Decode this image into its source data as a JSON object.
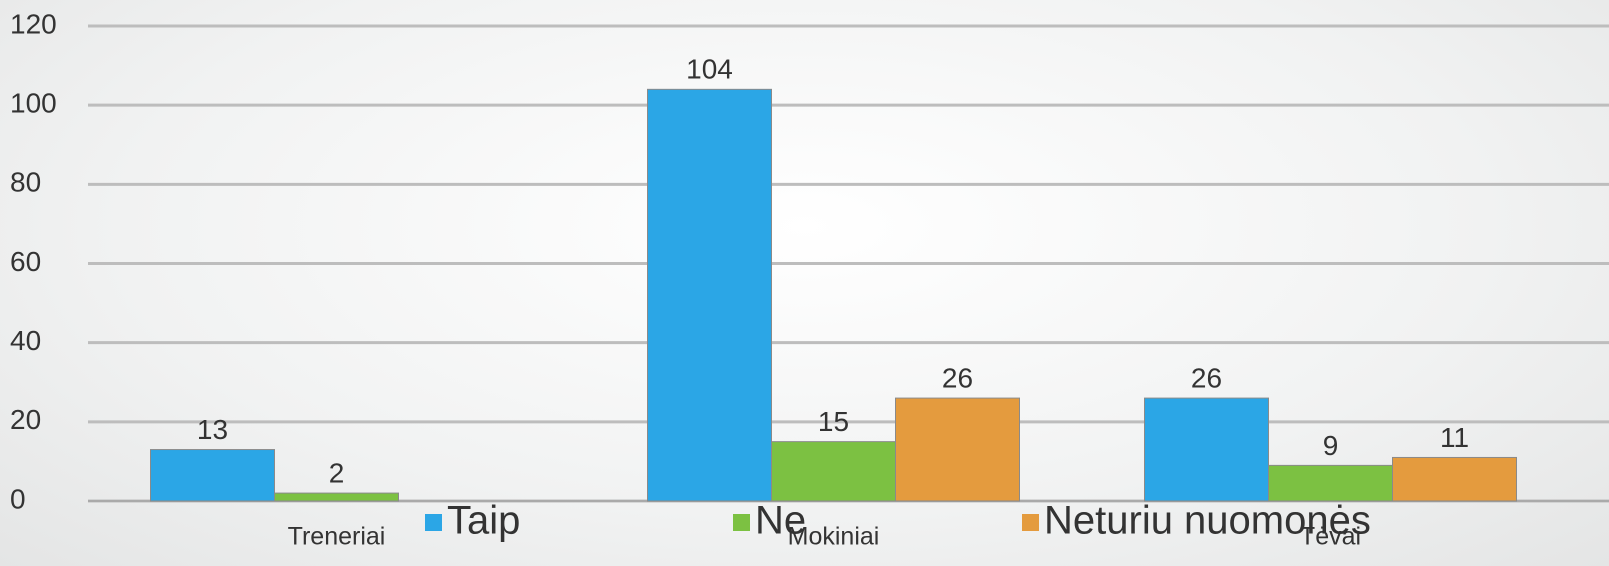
{
  "chart_data": {
    "type": "bar",
    "categories": [
      "Treneriai",
      "Mokiniai",
      "Tėvai"
    ],
    "series": [
      {
        "name": "Taip",
        "color": "#2ba6e6",
        "values": [
          13,
          104,
          26
        ]
      },
      {
        "name": "Ne",
        "color": "#7cc142",
        "values": [
          2,
          15,
          9
        ]
      },
      {
        "name": "Neturiu nuomonės",
        "color": "#e49b3e",
        "values": [
          null,
          26,
          11
        ]
      }
    ],
    "ylim": [
      0,
      120
    ],
    "yticks": [
      0,
      20,
      40,
      60,
      80,
      100,
      120
    ],
    "grid": true,
    "legend": "bottom"
  }
}
